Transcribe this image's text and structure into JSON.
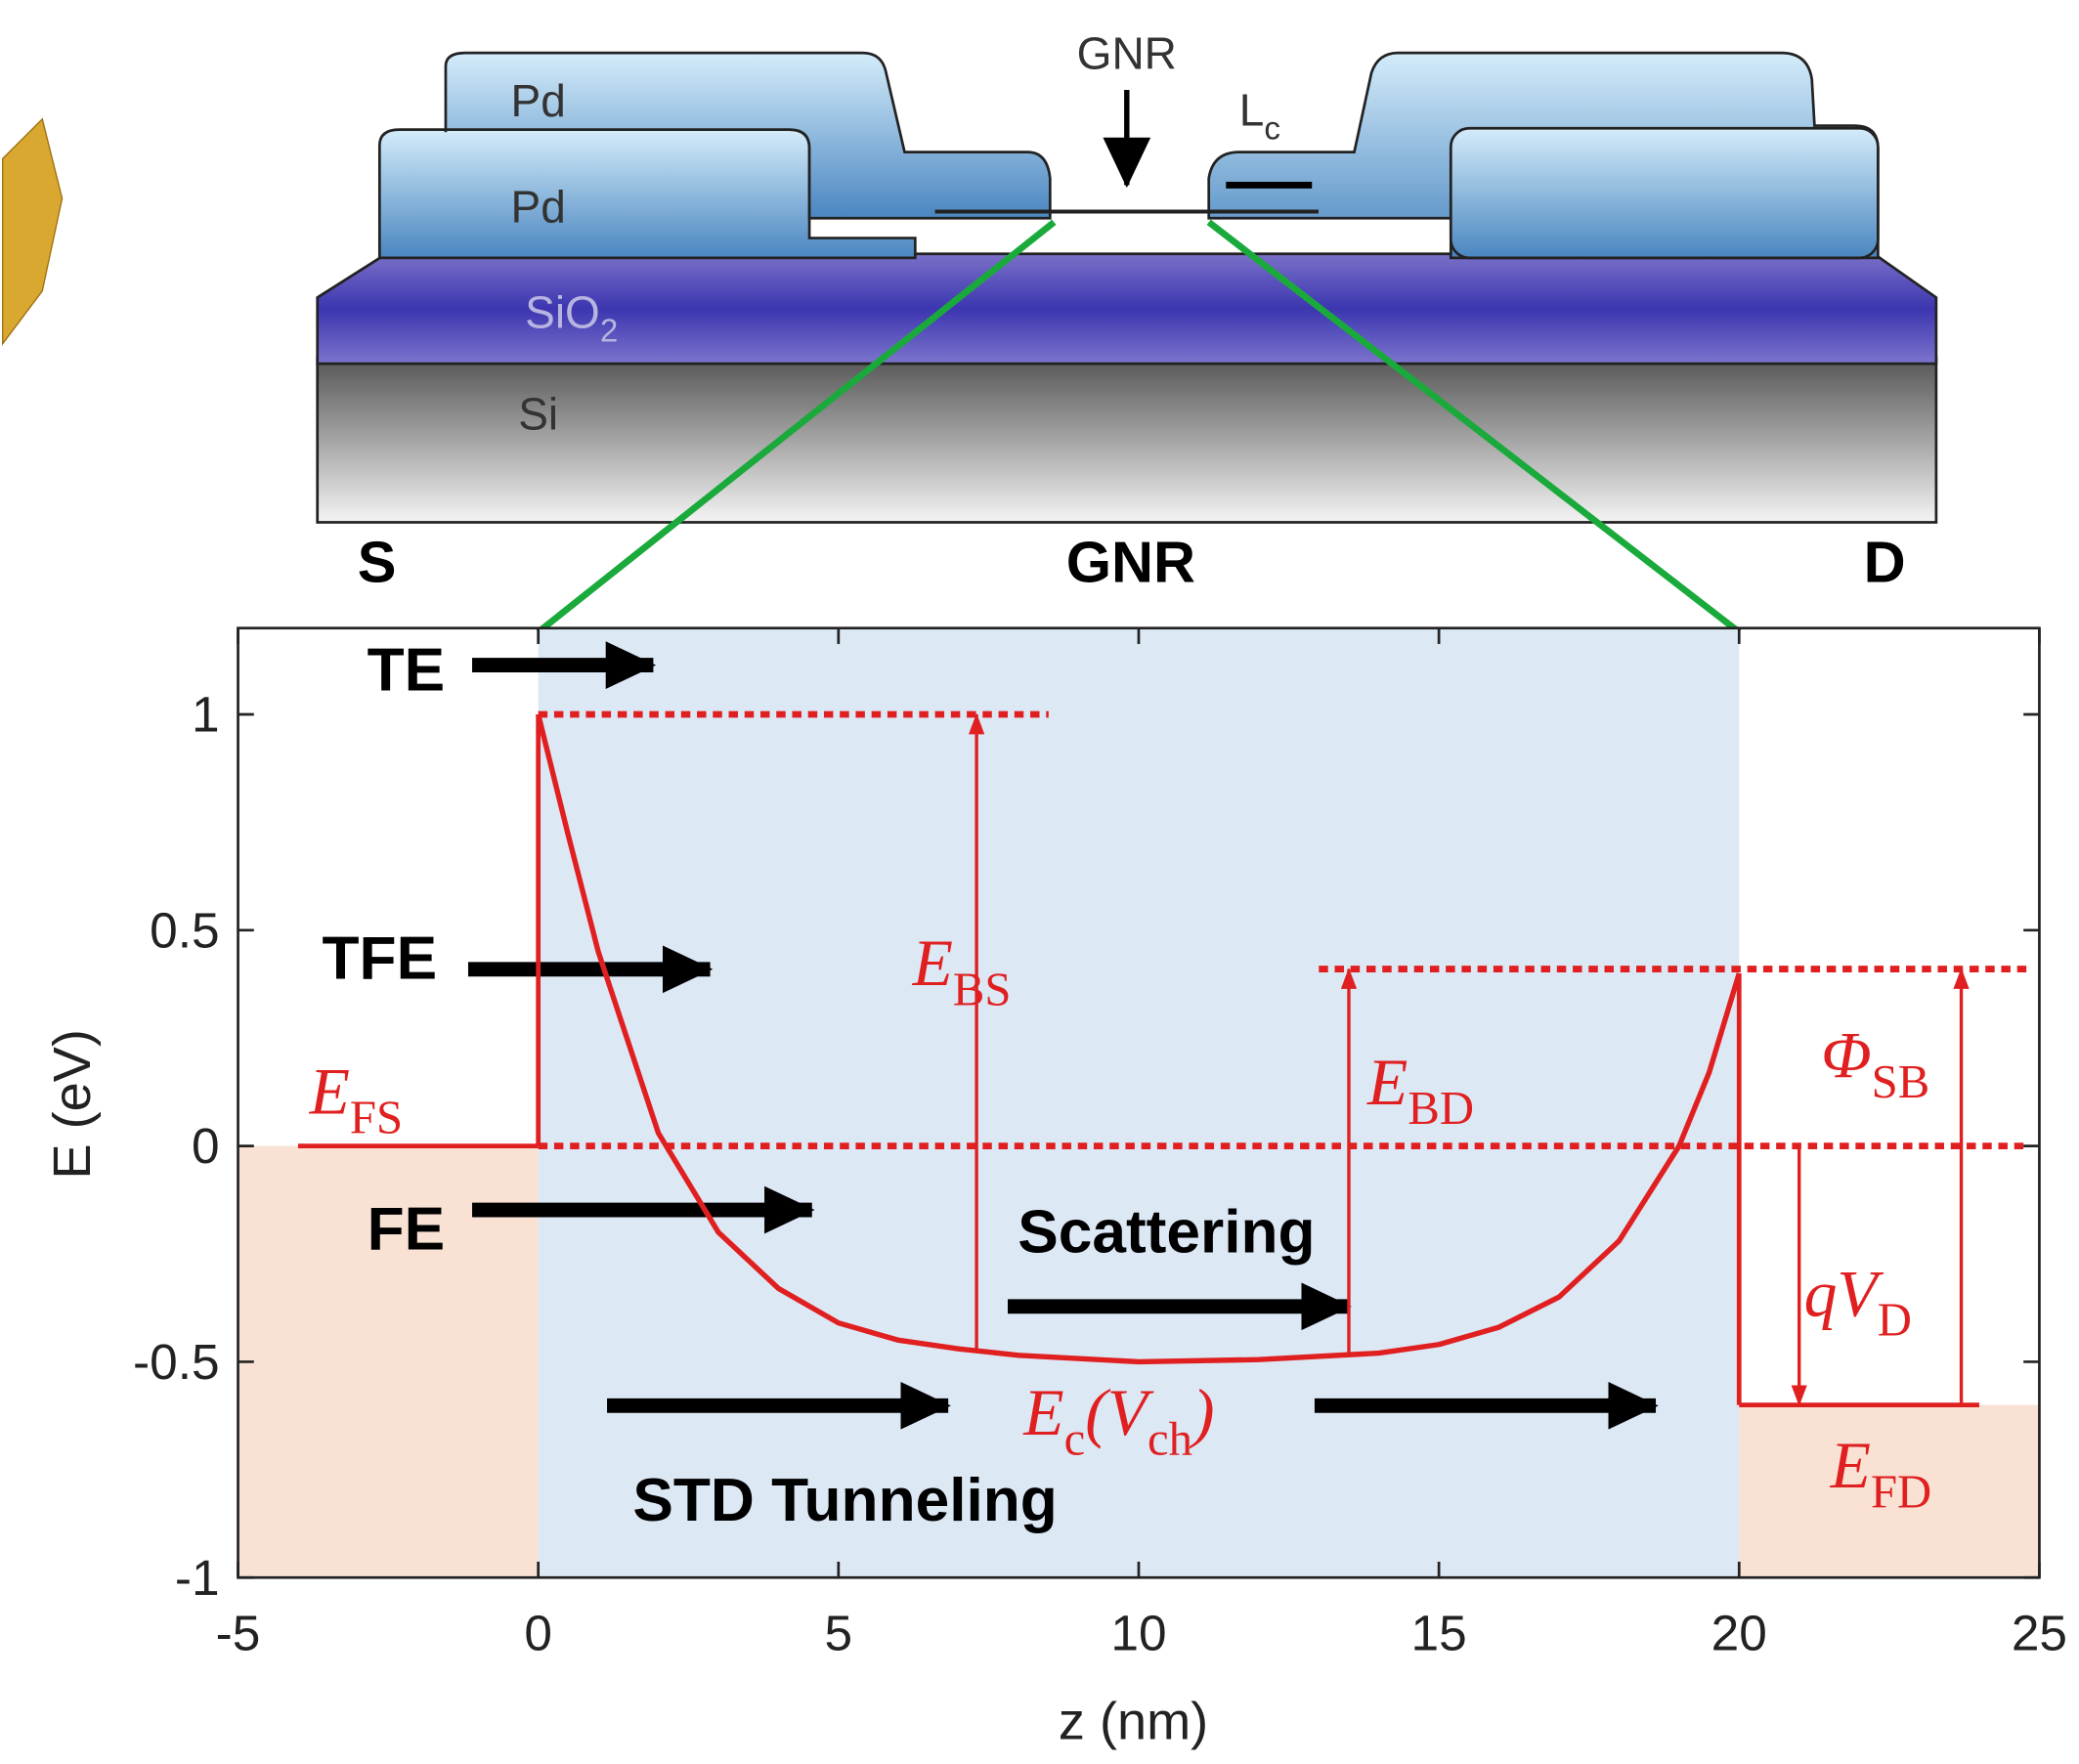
{
  "schematic": {
    "pd_top": "Pd",
    "pd_bottom": "Pd",
    "sio2": [
      {
        "text": "SiO"
      },
      {
        "text": "2",
        "sub": true
      }
    ],
    "si": "Si",
    "gnr": "GNR",
    "lc": [
      {
        "text": "L"
      },
      {
        "text": "c",
        "sub": true
      }
    ]
  },
  "chart_data": {
    "type": "line",
    "xlabel": "z (nm)",
    "ylabel": "E (eV)",
    "xlim": [
      -5,
      25
    ],
    "ylim": [
      -1,
      1.2
    ],
    "xticks": [
      -5,
      0,
      5,
      10,
      15,
      20,
      25
    ],
    "yticks": [
      -1,
      -0.5,
      0,
      0.5,
      1
    ],
    "region_labels": [
      "S",
      "GNR",
      "D"
    ],
    "shaded": [
      {
        "x": [
          0,
          20
        ],
        "y": [
          -1,
          1.2
        ],
        "color": "#dde8f5"
      },
      {
        "x": [
          -5,
          0
        ],
        "y": [
          -1,
          0
        ],
        "color": "#f9e2d4"
      },
      {
        "x": [
          20,
          25
        ],
        "y": [
          -1,
          -0.6
        ],
        "color": "#f9e2d4"
      }
    ],
    "series": [
      {
        "color": "#e02020",
        "x": [
          0,
          0.5,
          1,
          2,
          3,
          4,
          5,
          6,
          7,
          8,
          10,
          12,
          14,
          15,
          16,
          17,
          18,
          19,
          19.5,
          20
        ],
        "values": [
          1,
          0.72,
          0.45,
          0.03,
          -0.2,
          -0.33,
          -0.41,
          -0.45,
          -0.47,
          -0.485,
          -0.5,
          -0.495,
          -0.48,
          -0.46,
          -0.42,
          -0.35,
          -0.22,
          0,
          0.17,
          0.4
        ]
      }
    ],
    "levels": [
      {
        "x": [
          -4,
          0
        ],
        "values": [
          0,
          0
        ]
      },
      {
        "x": [
          0,
          0
        ],
        "values": [
          0,
          1
        ]
      },
      {
        "x": [
          20,
          20
        ],
        "values": [
          0.4,
          -0.6
        ]
      },
      {
        "x": [
          20,
          24
        ],
        "values": [
          -0.6,
          -0.6
        ]
      }
    ],
    "dotted": [
      {
        "x": [
          0,
          8.5
        ],
        "values": [
          1,
          1
        ]
      },
      {
        "x": [
          0,
          24.8
        ],
        "values": [
          0,
          0
        ]
      },
      {
        "x": [
          13,
          24.8
        ],
        "values": [
          0.41,
          0.41
        ]
      }
    ],
    "arrows": [
      {
        "x": 7.3,
        "from": -0.47,
        "to": 1,
        "label": [
          {
            "text": "E"
          },
          {
            "text": "BS",
            "sub": true
          }
        ]
      },
      {
        "x": 13.5,
        "from": -0.48,
        "to": 0.41,
        "label": [
          {
            "text": "E"
          },
          {
            "text": "BD",
            "sub": true
          }
        ]
      },
      {
        "x": 23.7,
        "from": -0.6,
        "to": 0.41,
        "label": [
          {
            "text": "Φ"
          },
          {
            "text": "SB",
            "sub": true
          }
        ]
      },
      {
        "x": 21,
        "from": 0,
        "to": -0.6,
        "label": [
          {
            "text": "qV"
          },
          {
            "text": "D",
            "sub": true
          }
        ]
      }
    ],
    "level_labels": [
      [
        {
          "text": "E"
        },
        {
          "text": "FS",
          "sub": true
        }
      ],
      [
        {
          "text": "E"
        },
        {
          "text": "c",
          "sub": true
        },
        {
          "text": "(V"
        },
        {
          "text": "ch",
          "sub": true
        },
        {
          "text": ")"
        }
      ],
      [
        {
          "text": "E"
        },
        {
          "text": "FD",
          "sub": true
        }
      ]
    ],
    "annotations": [
      "TE",
      "TFE",
      "FE",
      "Scattering",
      "STD Tunneling"
    ]
  }
}
